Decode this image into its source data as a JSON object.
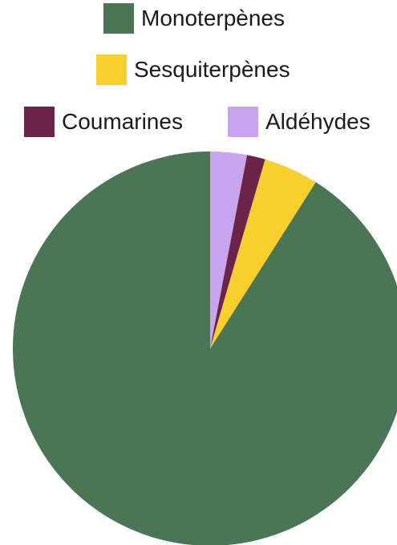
{
  "chart_data": {
    "type": "pie",
    "title": "",
    "series": [
      {
        "values": [
          91,
          4.5,
          1.5,
          3
        ]
      }
    ],
    "categories": [
      "Monoterpènes",
      "Sesquiterpènes",
      "Coumarines",
      "Aldéhydes"
    ],
    "slice_order": "clockwise from top, reverse of legend order",
    "legend": {
      "placement": "top",
      "entries": [
        {
          "label": "Monoterpènes",
          "color": "#4a7655"
        },
        {
          "label": "Sesquiterpènes",
          "color": "#f8cf2d"
        },
        {
          "label": "Coumarines",
          "color": "#6d2348"
        },
        {
          "label": "Aldéhydes",
          "color": "#c8a5ee"
        }
      ]
    },
    "colors": [
      "#4a7655",
      "#f8cf2d",
      "#6d2348",
      "#c8a5ee"
    ]
  }
}
